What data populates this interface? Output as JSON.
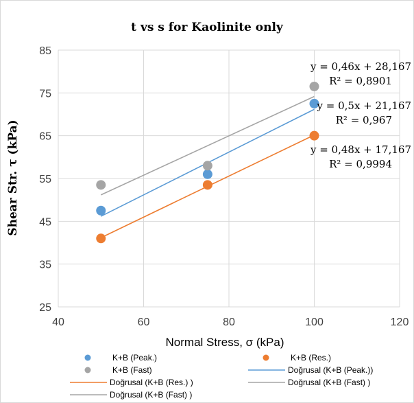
{
  "chart_data": {
    "type": "scatter",
    "title": "t vs s for Kaolinite only",
    "xlabel": "Normal Stress, σ (kPa)",
    "ylabel": "Shear Str.  τ (kPa)",
    "xlim": [
      40,
      120
    ],
    "ylim": [
      25,
      85
    ],
    "xticks": [
      40,
      60,
      80,
      100,
      120
    ],
    "yticks": [
      25,
      35,
      45,
      55,
      65,
      75,
      85
    ],
    "grid": true,
    "legend_position": "bottom",
    "series": [
      {
        "name": "K+B (Peak.)",
        "color": "#5b9bd5",
        "x": [
          50,
          75,
          100
        ],
        "y": [
          47.5,
          56,
          72.5
        ]
      },
      {
        "name": "K+B (Res.)",
        "color": "#ed7d31",
        "x": [
          50,
          75,
          100
        ],
        "y": [
          41,
          53.5,
          65
        ]
      },
      {
        "name": "K+B (Fast)",
        "color": "#a5a5a5",
        "x": [
          50,
          75,
          100
        ],
        "y": [
          53.5,
          58,
          76.5
        ]
      }
    ],
    "trendlines": [
      {
        "name": "Doğrusal (K+B (Peak.))",
        "color": "#5b9bd5",
        "slope": 0.5,
        "intercept": 21.167,
        "x_range": [
          50,
          100
        ],
        "equation": "y = 0,5x + 21,167",
        "r2": "R² = 0,967"
      },
      {
        "name": "Doğrusal (K+B (Res.) )",
        "color": "#ed7d31",
        "slope": 0.48,
        "intercept": 17.167,
        "x_range": [
          50,
          100
        ],
        "equation": "y = 0,48x + 17,167",
        "r2": "R² = 0,9994"
      },
      {
        "name": "Doğrusal (K+B (Fast) )",
        "color": "#a5a5a5",
        "slope": 0.46,
        "intercept": 28.167,
        "x_range": [
          50,
          100
        ],
        "equation": "y = 0,46x + 28,167",
        "r2": "R² = 0,8901"
      }
    ],
    "extra_legend_entries": [
      {
        "name": "Doğrusal (K+B (Fast) )",
        "color": "#a5a5a5"
      }
    ]
  }
}
